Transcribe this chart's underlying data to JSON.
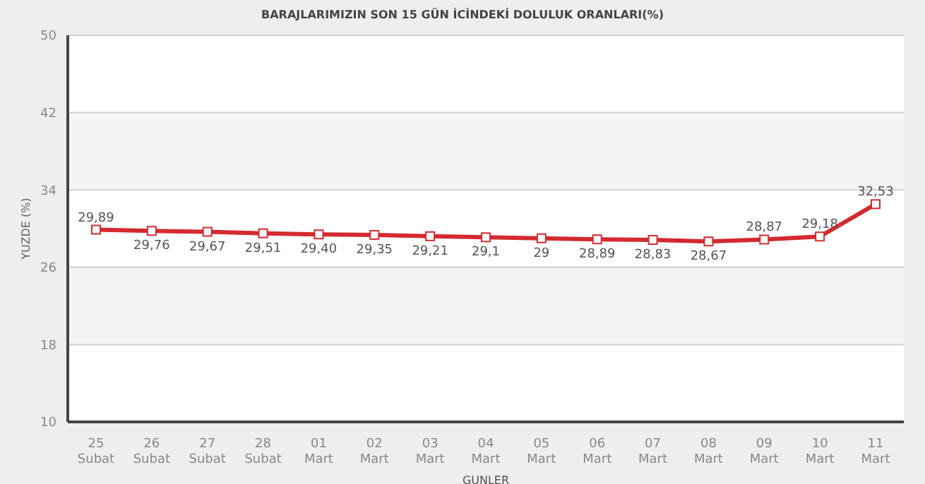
{
  "chart_data": {
    "type": "line",
    "title": "BARAJLARIMIZIN SON 15 GÜN İCİNDEKİ DOLULUK ORANLARI(%)",
    "xlabel": "GUNLER",
    "ylabel": "YUZDE (%)",
    "categories": [
      "25 Subat",
      "26 Subat",
      "27 Subat",
      "28 Subat",
      "01 Mart",
      "02 Mart",
      "03 Mart",
      "04 Mart",
      "05 Mart",
      "06 Mart",
      "07 Mart",
      "08 Mart",
      "09 Mart",
      "10 Mart",
      "11 Mart"
    ],
    "series": [
      {
        "color": "#d42a2f",
        "values": [
          29.89,
          29.76,
          29.67,
          29.51,
          29.4,
          29.35,
          29.21,
          29.1,
          29,
          28.89,
          28.83,
          28.67,
          28.87,
          29.18,
          32.53
        ],
        "value_labels": [
          "29,89",
          "29,76",
          "29,67",
          "29,51",
          "29,40",
          "29,35",
          "29,21",
          "29,1",
          "29",
          "28,89",
          "28,83",
          "28,67",
          "28,87",
          "29,18",
          "32,53"
        ]
      }
    ],
    "ylim": [
      10,
      50
    ],
    "yticks": [
      10,
      18,
      26,
      34,
      42,
      50
    ],
    "grid": "y",
    "marker": "square",
    "line_style": "solid"
  }
}
